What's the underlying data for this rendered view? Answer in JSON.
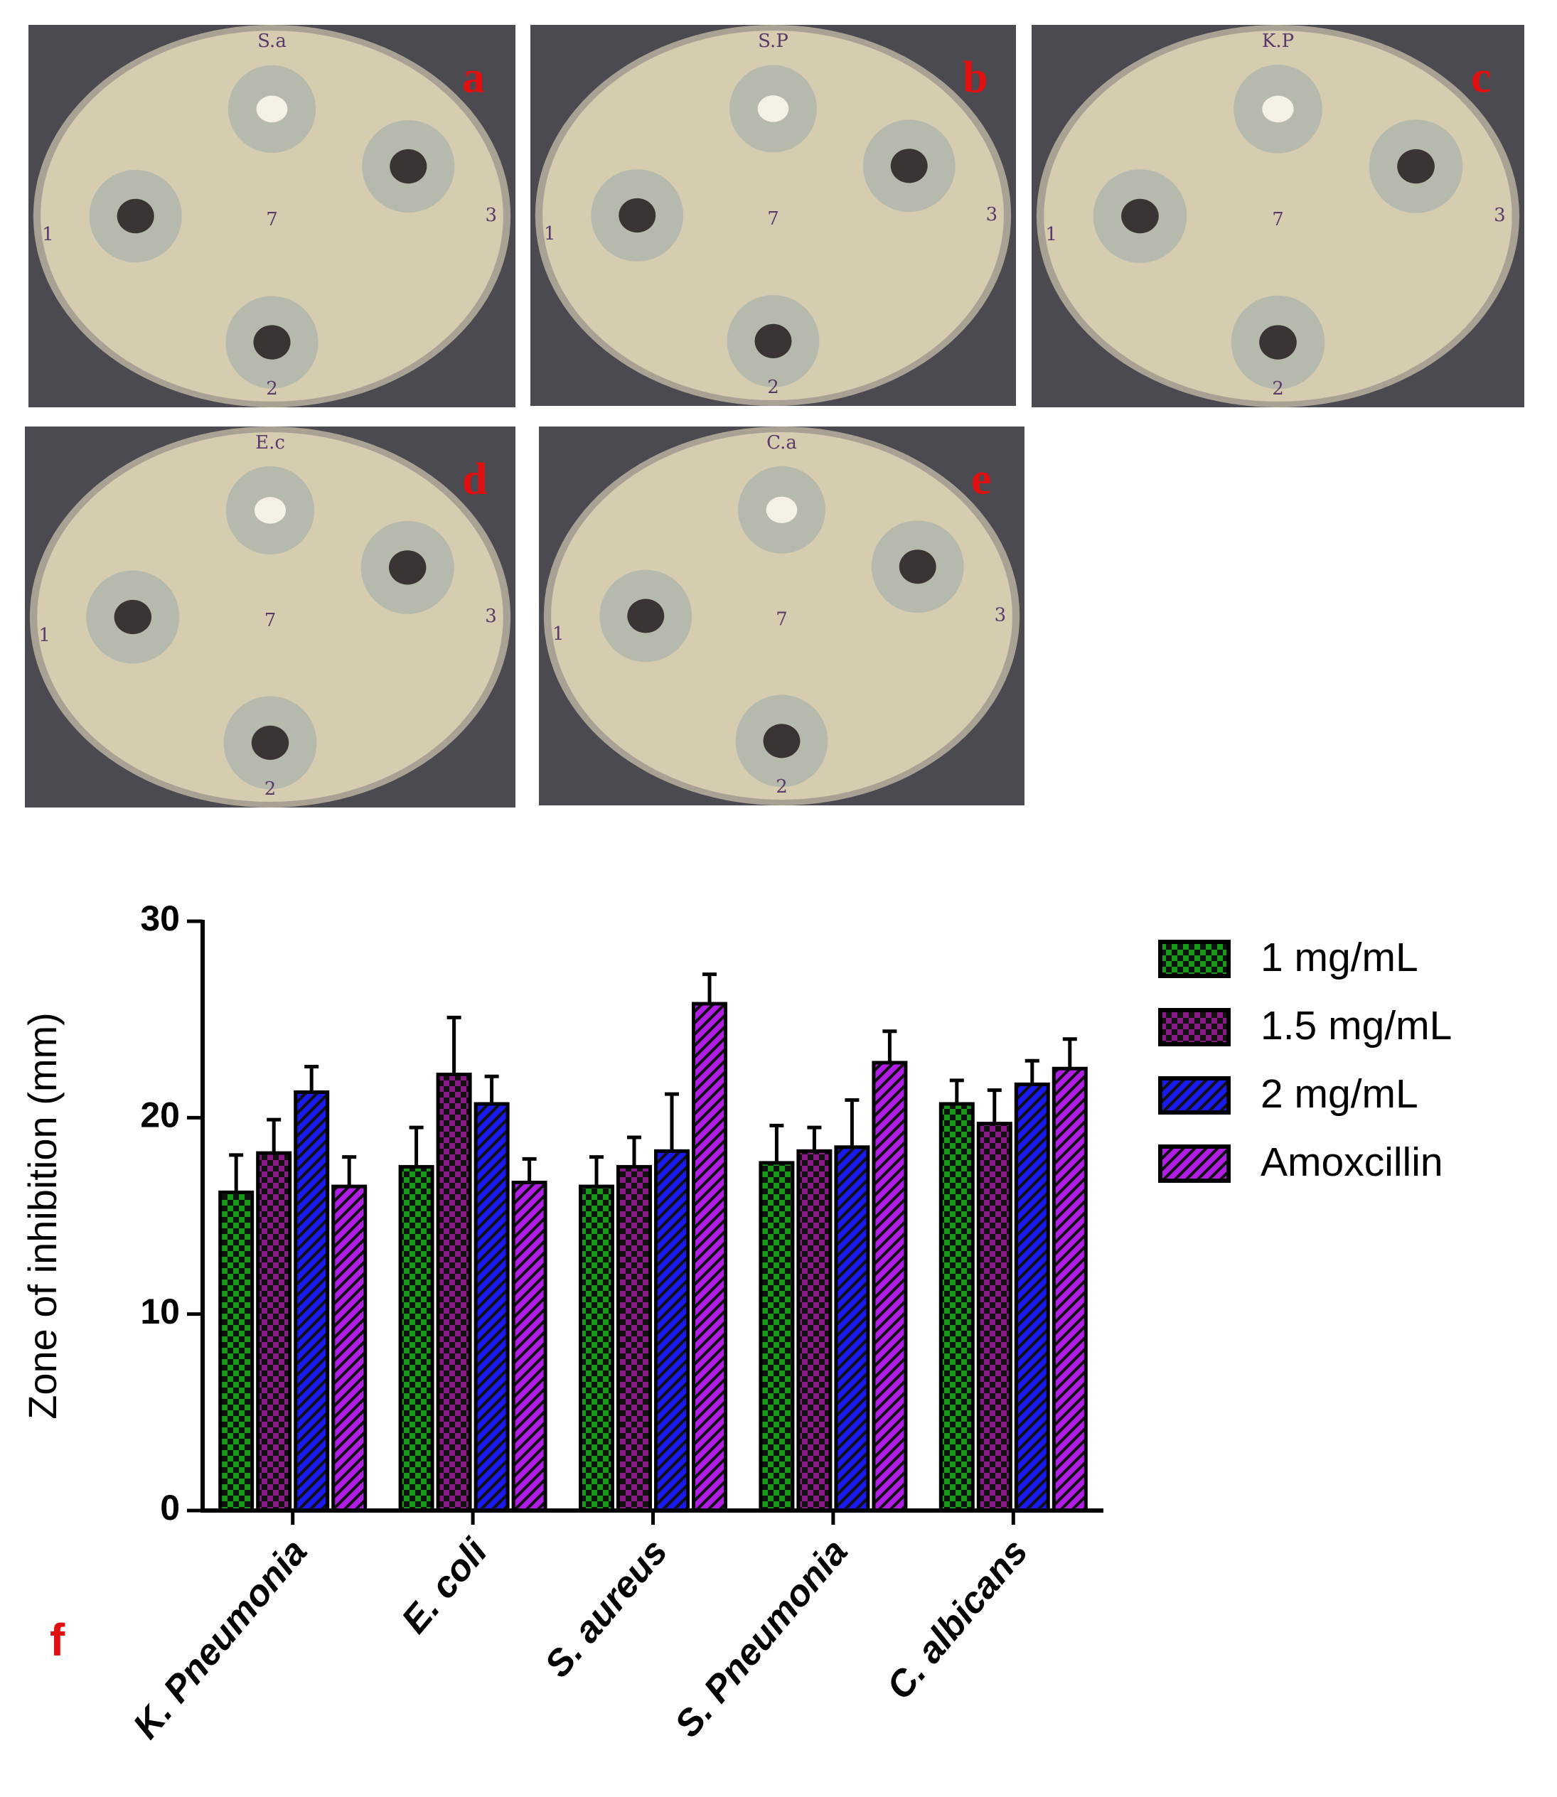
{
  "panels": [
    {
      "label": "a",
      "code": "S.a"
    },
    {
      "label": "b",
      "code": "S.P"
    },
    {
      "label": "c",
      "code": "K.P"
    },
    {
      "label": "d",
      "code": "E.c"
    },
    {
      "label": "e",
      "code": "C.a"
    }
  ],
  "well_labels": [
    "1",
    "2",
    "3",
    "7"
  ],
  "chart_data": {
    "type": "bar",
    "panel_label": "f",
    "y_label": "Zone of inhibition (mm)",
    "categories": [
      "K. Pneumonia",
      "E. coli",
      "S. aureus",
      "S. Pneumonia",
      "C. albicans"
    ],
    "series": [
      {
        "name": "1 mg/mL",
        "color": "#1a9a1a",
        "pattern": "checker",
        "values": [
          16.2,
          17.5,
          16.5,
          17.7,
          20.7
        ],
        "errors": [
          1.9,
          2.0,
          1.5,
          1.9,
          1.2
        ]
      },
      {
        "name": "1.5 mg/mL",
        "color": "#8a1a8a",
        "pattern": "checker",
        "values": [
          18.2,
          22.2,
          17.5,
          18.3,
          19.7
        ],
        "errors": [
          1.7,
          2.9,
          1.5,
          1.2,
          1.7
        ]
      },
      {
        "name": "2 mg/mL",
        "color": "#1a1aee",
        "pattern": "stripes",
        "values": [
          21.3,
          20.7,
          18.3,
          18.5,
          21.7
        ],
        "errors": [
          1.3,
          1.4,
          2.9,
          2.4,
          1.2
        ]
      },
      {
        "name": "Amoxcillin",
        "color": "#b01ee6",
        "pattern": "stripes",
        "values": [
          16.5,
          16.7,
          25.8,
          22.8,
          22.5
        ],
        "errors": [
          1.5,
          1.2,
          1.5,
          1.6,
          1.5
        ]
      }
    ],
    "ylim": [
      0,
      30
    ],
    "yticks": [
      0,
      10,
      20,
      30
    ],
    "legend": "right"
  }
}
